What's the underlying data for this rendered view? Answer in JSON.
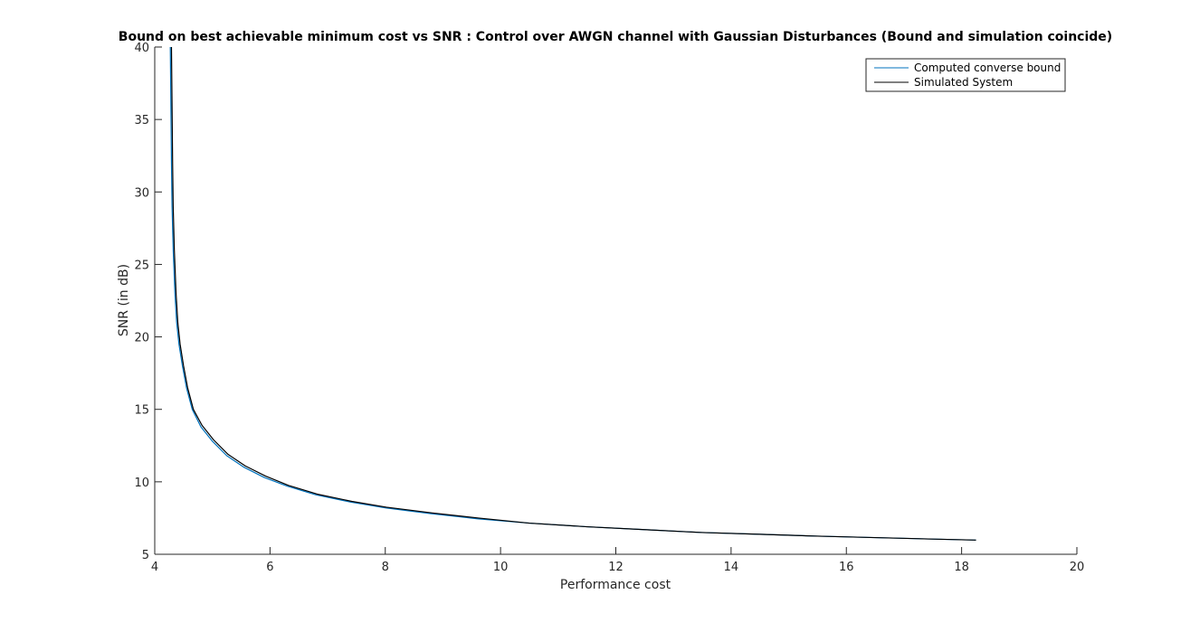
{
  "chart_data": {
    "type": "line",
    "title": "Bound on best achievable minimum cost vs SNR  : Control over AWGN channel with Gaussian Disturbances (Bound and simulation coincide)",
    "xlabel": "Performance cost",
    "ylabel": "SNR (in dB)",
    "xlim": [
      4,
      20
    ],
    "ylim": [
      5,
      40
    ],
    "xticks": [
      4,
      6,
      8,
      10,
      12,
      14,
      16,
      18,
      20
    ],
    "yticks": [
      5,
      10,
      15,
      20,
      25,
      30,
      35,
      40
    ],
    "grid": false,
    "legend_position": "top-right",
    "series": [
      {
        "name": "Computed converse bound",
        "color": "#0072BD",
        "x": [
          4.27,
          4.28,
          4.29,
          4.3,
          4.32,
          4.35,
          4.38,
          4.42,
          4.48,
          4.55,
          4.65,
          4.8,
          5.0,
          5.25,
          5.55,
          5.9,
          6.3,
          6.8,
          7.4,
          8.0,
          8.8,
          9.6,
          10.5,
          11.5,
          12.5,
          13.5,
          14.5,
          15.5,
          16.5,
          17.5,
          18.25
        ],
        "y": [
          40,
          36,
          32,
          29,
          26,
          23,
          21,
          19.5,
          18,
          16.5,
          15,
          13.8,
          12.8,
          11.8,
          11.0,
          10.3,
          9.7,
          9.1,
          8.6,
          8.2,
          7.8,
          7.45,
          7.15,
          6.9,
          6.7,
          6.5,
          6.38,
          6.25,
          6.15,
          6.05,
          5.98
        ]
      },
      {
        "name": "Simulated System",
        "color": "#000000",
        "x": [
          4.29,
          4.3,
          4.31,
          4.32,
          4.34,
          4.37,
          4.4,
          4.44,
          4.5,
          4.57,
          4.67,
          4.82,
          5.02,
          5.27,
          5.57,
          5.92,
          6.32,
          6.82,
          7.42,
          8.02,
          8.82,
          9.62,
          10.5,
          11.5,
          12.5,
          13.5,
          14.5,
          15.5,
          16.5,
          17.5,
          18.25
        ],
        "y": [
          40,
          36,
          32,
          29,
          26,
          23,
          21,
          19.5,
          18,
          16.5,
          15,
          13.9,
          12.9,
          11.9,
          11.1,
          10.4,
          9.75,
          9.15,
          8.65,
          8.25,
          7.85,
          7.5,
          7.15,
          6.9,
          6.7,
          6.5,
          6.38,
          6.25,
          6.15,
          6.05,
          5.98
        ]
      }
    ]
  }
}
